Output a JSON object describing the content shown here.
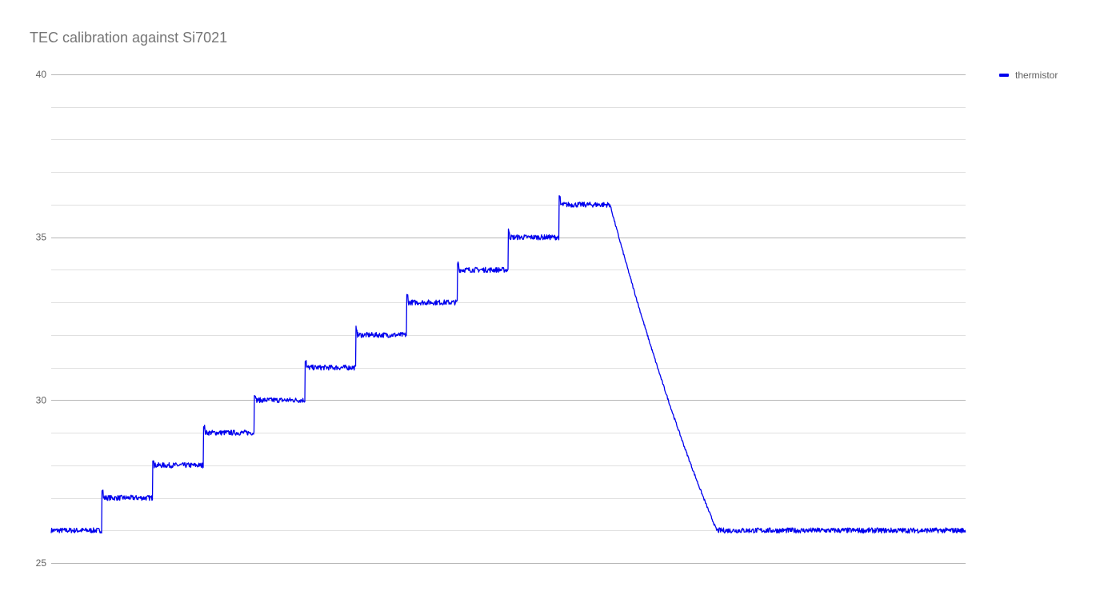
{
  "chart_data": {
    "type": "line",
    "title": "TEC calibration against Si7021",
    "xlabel": "",
    "ylabel": "",
    "ylim": [
      25,
      40
    ],
    "y_ticks": [
      25,
      30,
      35,
      40
    ],
    "minor_gridlines_per_major": 5,
    "grid": true,
    "legend_position": "right",
    "series": [
      {
        "name": "thermistor",
        "color": "#0000ee",
        "step_levels": [
          26,
          27,
          28,
          29,
          30,
          31,
          32,
          33,
          34,
          35,
          36
        ],
        "cool_down_from": 36,
        "final_level": 26,
        "noise_amplitude": 0.08
      }
    ]
  }
}
